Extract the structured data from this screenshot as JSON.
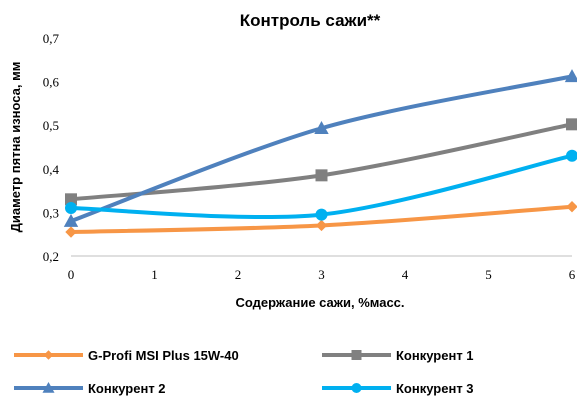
{
  "chart_data": {
    "type": "line",
    "title": "Контроль сажи**",
    "xlabel": "Содержание сажи, %масс.",
    "ylabel": "Диаметр пятна износа, мм",
    "xlim": [
      0,
      6
    ],
    "ylim": [
      0.2,
      0.7
    ],
    "xticks": [
      "0",
      "1",
      "2",
      "3",
      "4",
      "5",
      "6"
    ],
    "yticks": [
      "0,2",
      "0,3",
      "0,4",
      "0,5",
      "0,6",
      "0,7"
    ],
    "grid": false,
    "legend_position": "bottom",
    "x": [
      0,
      3,
      6
    ],
    "series": [
      {
        "name": "G-Profi MSI Plus 15W-40",
        "values": [
          0.255,
          0.27,
          0.313
        ],
        "color": "#f79646",
        "marker": "diamond"
      },
      {
        "name": "Конкурент 1",
        "values": [
          0.33,
          0.385,
          0.502
        ],
        "color": "#808080",
        "marker": "square"
      },
      {
        "name": "Конкурент 2",
        "values": [
          0.28,
          0.493,
          0.612
        ],
        "color": "#4f81bd",
        "marker": "triangle"
      },
      {
        "name": "Конкурент 3",
        "values": [
          0.31,
          0.295,
          0.43
        ],
        "color": "#00b0f0",
        "marker": "circle"
      }
    ]
  }
}
